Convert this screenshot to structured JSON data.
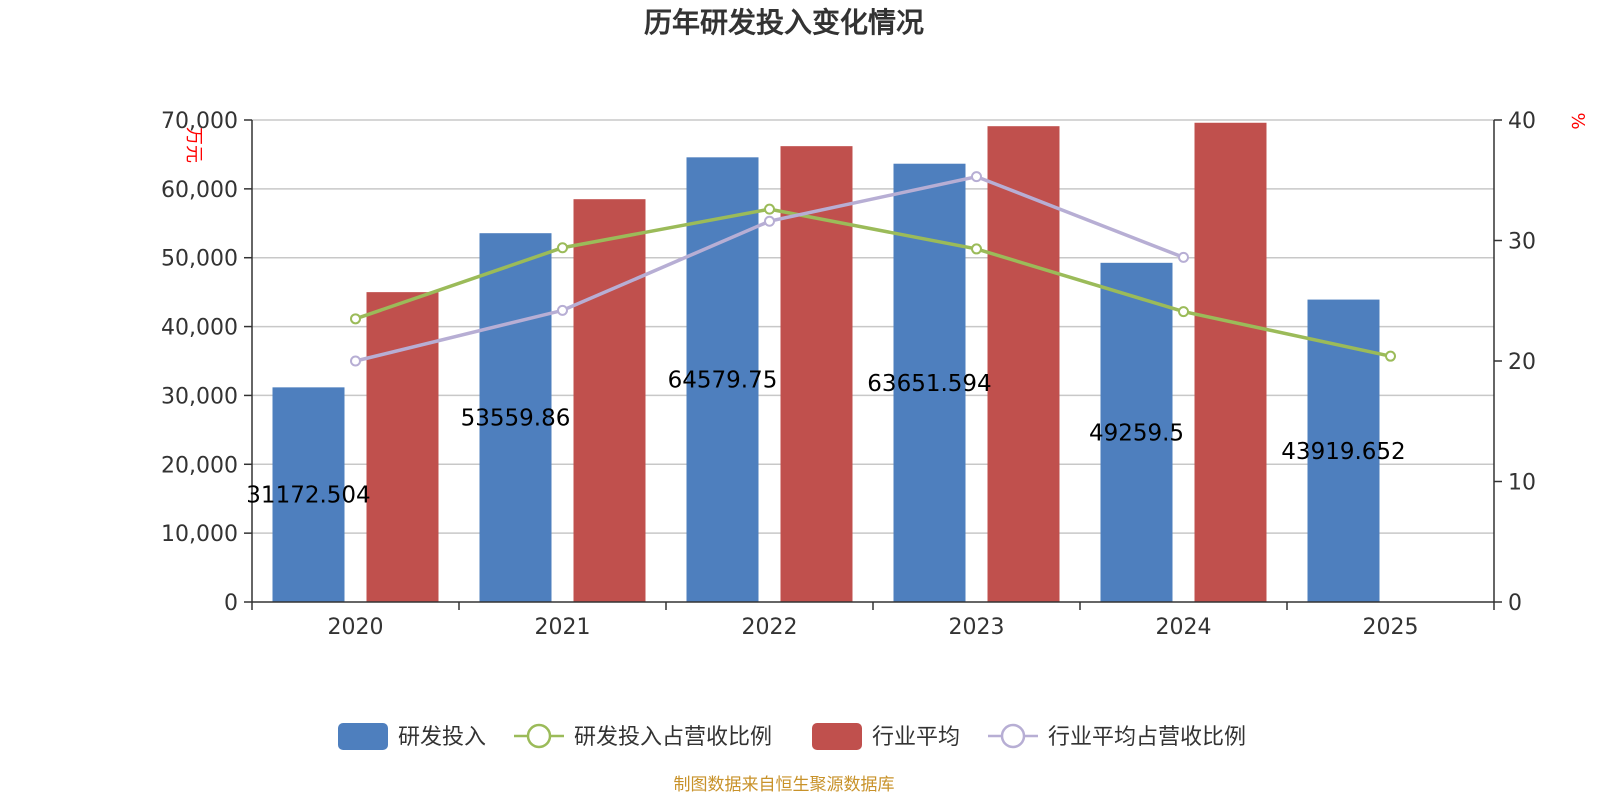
{
  "colors": {
    "rd_bar": "#4e7fbe",
    "industry_bar": "#c0504d",
    "rd_ratio_line": "#9bbb59",
    "industry_ratio_line": "#b7aed4",
    "grid": "#c8c8c8",
    "axis": "#333333",
    "unit_text": "#ff0000",
    "source_text": "#c8922a"
  },
  "chart_data": {
    "type": "bar",
    "title": "历年研发投入变化情况",
    "categories": [
      "2020",
      "2021",
      "2022",
      "2023",
      "2024",
      "2025"
    ],
    "y_left": {
      "unit": "万元",
      "ylim": [
        0,
        70000
      ],
      "ticks": [
        "0",
        "10,000",
        "20,000",
        "30,000",
        "40,000",
        "50,000",
        "60,000",
        "70,000"
      ]
    },
    "y_right": {
      "unit": "%",
      "ylim": [
        0,
        40
      ],
      "ticks": [
        "0",
        "10",
        "20",
        "30",
        "40"
      ]
    },
    "grid": true,
    "legend_position": "bottom-center",
    "series": [
      {
        "name": "研发投入",
        "kind": "bar",
        "axis": "left",
        "values": [
          31172.504,
          53559.86,
          64579.75,
          63651.594,
          49259.5,
          43919.652
        ],
        "labels": [
          "31172.504",
          "53559.86",
          "64579.75",
          "63651.594",
          "49259.5",
          "43919.652"
        ]
      },
      {
        "name": "研发投入占营收比例",
        "kind": "line",
        "axis": "right",
        "values": [
          23.5,
          29.4,
          32.6,
          29.3,
          24.1,
          20.4
        ]
      },
      {
        "name": "行业平均",
        "kind": "bar",
        "axis": "left",
        "values": [
          45000,
          58500,
          66200,
          69100,
          69600,
          null
        ]
      },
      {
        "name": "行业平均占营收比例",
        "kind": "line",
        "axis": "right",
        "values": [
          20.0,
          24.2,
          31.6,
          35.3,
          28.6,
          null
        ]
      }
    ]
  },
  "source": "制图数据来自恒生聚源数据库"
}
